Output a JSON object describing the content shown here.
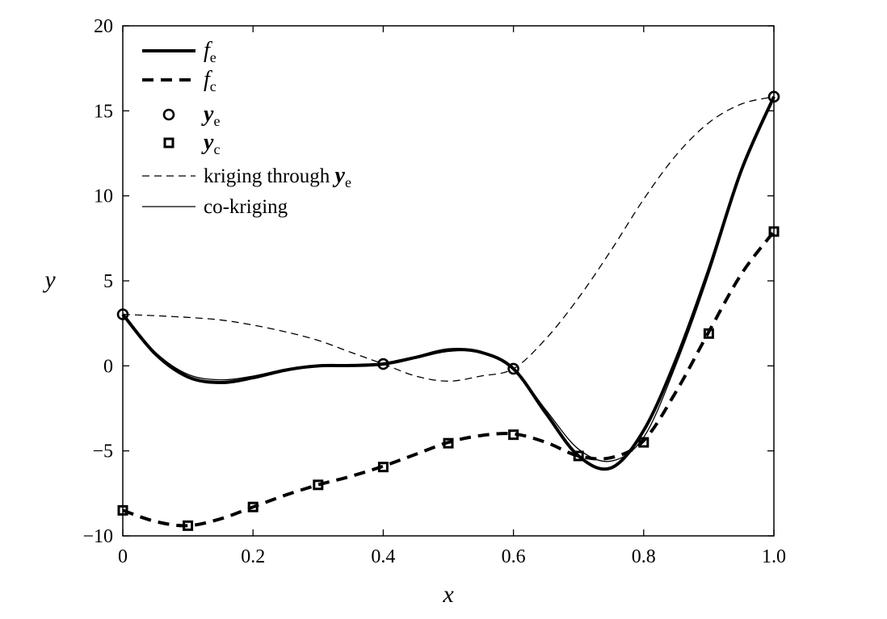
{
  "chart_data": {
    "type": "line",
    "xlabel": "x",
    "ylabel": "y",
    "xlim": [
      0,
      1.0
    ],
    "ylim": [
      -10,
      20
    ],
    "xticks": [
      "0",
      "0.2",
      "0.4",
      "0.6",
      "0.8",
      "1.0"
    ],
    "yticks": [
      "−10",
      "−5",
      "0",
      "5",
      "10",
      "15",
      "20"
    ],
    "xtick_values": [
      0,
      0.2,
      0.4,
      0.6,
      0.8,
      1.0
    ],
    "ytick_values": [
      -10,
      -5,
      0,
      5,
      10,
      15,
      20
    ],
    "grid": false,
    "legend_position": "top-left",
    "legend": [
      {
        "key": "fe",
        "symbol": "f",
        "subscript": "e",
        "style": "thick solid line"
      },
      {
        "key": "fc",
        "symbol": "f",
        "subscript": "c",
        "style": "thick dashed line"
      },
      {
        "key": "ye",
        "symbol": "y",
        "subscript": "e",
        "style": "circle marker"
      },
      {
        "key": "yc",
        "symbol": "y",
        "subscript": "c",
        "style": "square marker"
      },
      {
        "key": "kriging",
        "prefix": "kriging through",
        "symbol": "y",
        "subscript": "e",
        "style": "thin dashed line"
      },
      {
        "key": "cokriging",
        "prefix": "co-kriging",
        "style": "thin solid line"
      }
    ],
    "series": [
      {
        "key": "fe",
        "style": "thick-solid",
        "x": [
          0,
          0.05,
          0.1,
          0.15,
          0.2,
          0.25,
          0.3,
          0.35,
          0.4,
          0.45,
          0.5,
          0.55,
          0.6,
          0.65,
          0.7,
          0.75,
          0.8,
          0.85,
          0.9,
          0.95,
          1.0
        ],
        "y": [
          3.03,
          0.7,
          -0.65,
          -0.98,
          -0.7,
          -0.25,
          0.0,
          0.02,
          0.11,
          0.5,
          0.94,
          0.8,
          -0.17,
          -2.8,
          -5.3,
          -6.0,
          -3.8,
          0.4,
          5.65,
          11.5,
          15.83
        ]
      },
      {
        "key": "fc",
        "style": "thick-dashed",
        "x": [
          0,
          0.05,
          0.1,
          0.15,
          0.2,
          0.25,
          0.3,
          0.35,
          0.4,
          0.45,
          0.5,
          0.55,
          0.6,
          0.65,
          0.7,
          0.75,
          0.8,
          0.85,
          0.9,
          0.95,
          1.0
        ],
        "y": [
          -8.5,
          -9.15,
          -9.4,
          -9.0,
          -8.3,
          -7.6,
          -7.0,
          -6.5,
          -5.9,
          -5.2,
          -4.5,
          -4.1,
          -4.0,
          -4.5,
          -5.3,
          -5.4,
          -4.4,
          -1.5,
          2.0,
          5.4,
          7.9
        ]
      },
      {
        "key": "ye",
        "style": "circle-markers",
        "x": [
          0,
          0.4,
          0.6,
          1.0
        ],
        "y": [
          3.03,
          0.11,
          -0.17,
          15.83
        ]
      },
      {
        "key": "yc",
        "style": "square-markers",
        "x": [
          0,
          0.1,
          0.2,
          0.3,
          0.4,
          0.5,
          0.6,
          0.7,
          0.8,
          0.9,
          1.0
        ],
        "y": [
          -8.5,
          -9.4,
          -8.3,
          -7.0,
          -5.95,
          -4.55,
          -4.05,
          -5.3,
          -4.5,
          1.9,
          7.9
        ]
      },
      {
        "key": "kriging",
        "style": "thin-dashed",
        "x": [
          0,
          0.05,
          0.1,
          0.15,
          0.2,
          0.25,
          0.3,
          0.35,
          0.4,
          0.45,
          0.5,
          0.55,
          0.6,
          0.65,
          0.7,
          0.75,
          0.8,
          0.85,
          0.9,
          0.95,
          1.0
        ],
        "y": [
          3.03,
          2.95,
          2.85,
          2.7,
          2.4,
          2.0,
          1.5,
          0.8,
          0.11,
          -0.6,
          -0.9,
          -0.6,
          -0.17,
          1.6,
          4.0,
          6.8,
          9.8,
          12.4,
          14.3,
          15.4,
          15.83
        ]
      },
      {
        "key": "cokriging",
        "style": "thin-solid",
        "x": [
          0,
          0.05,
          0.1,
          0.15,
          0.2,
          0.25,
          0.3,
          0.35,
          0.4,
          0.45,
          0.5,
          0.55,
          0.6,
          0.65,
          0.7,
          0.75,
          0.8,
          0.85,
          0.9,
          0.95,
          1.0
        ],
        "y": [
          3.03,
          0.8,
          -0.5,
          -0.82,
          -0.6,
          -0.2,
          0.0,
          0.03,
          0.11,
          0.45,
          0.85,
          0.78,
          -0.17,
          -2.6,
          -4.9,
          -5.6,
          -4.2,
          0.1,
          5.4,
          11.4,
          15.83
        ]
      }
    ]
  },
  "colors": {
    "ink": "#000000",
    "background": "#ffffff"
  }
}
